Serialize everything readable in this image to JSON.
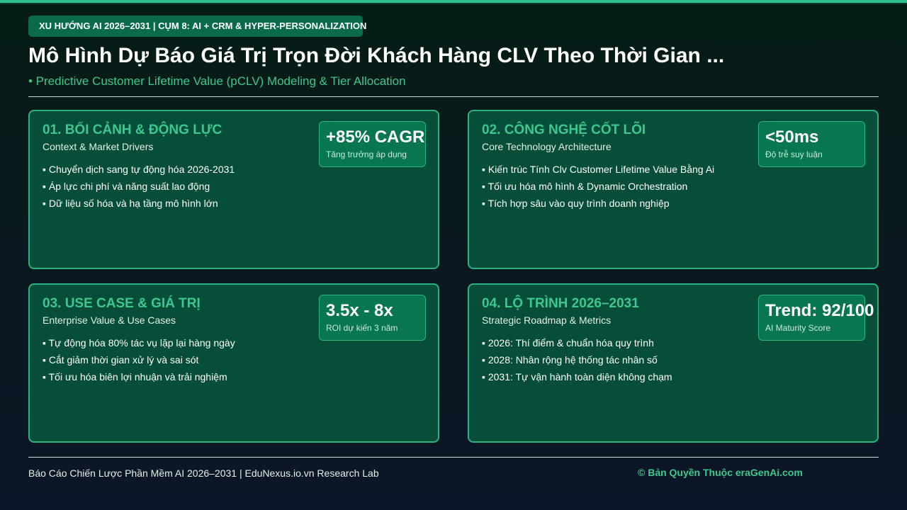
{
  "header": {
    "badge": "XU HƯỚNG AI 2026–2031 | CỤM 8: AI + CRM & HYPER-PERSONALIZATION",
    "title": "Mô Hình Dự Báo Giá Trị Trọn Đời Khách Hàng CLV Theo Thời Gian ...",
    "subtitle": "• Predictive Customer Lifetime Value (pCLV) Modeling & Tier Allocation"
  },
  "cards": [
    {
      "title": "01. BỐI CẢNH & ĐỘNG LỰC",
      "subtitle": "Context & Market Drivers",
      "metric": "+85% CAGR",
      "metric_label": "Tăng trưởng áp dụng",
      "bullets": [
        "▪ Chuyển dịch sang tự động hóa 2026-2031",
        "▪ Áp lực chi phí và năng suất lao động",
        "▪ Dữ liệu số hóa và hạ tầng mô hình lớn"
      ]
    },
    {
      "title": "02. CÔNG NGHỆ CỐT LÕI",
      "subtitle": "Core Technology Architecture",
      "metric": "<50ms",
      "metric_label": "Độ trễ suy luận",
      "bullets": [
        "▪ Kiến trúc Tính Clv Customer Lifetime Value Bằng Ai",
        "▪ Tối ưu hóa mô hình & Dynamic Orchestration",
        "▪ Tích hợp sâu vào quy trình doanh nghiệp"
      ]
    },
    {
      "title": "03. USE CASE & GIÁ TRỊ",
      "subtitle": "Enterprise Value & Use Cases",
      "metric": "3.5x - 8x",
      "metric_label": "ROI dự kiến 3 năm",
      "bullets": [
        "▪ Tự động hóa 80% tác vụ lặp lại hàng ngày",
        "▪ Cắt giảm thời gian xử lý và sai sót",
        "▪ Tối ưu hóa biên lợi nhuận và trải nghiệm"
      ]
    },
    {
      "title": "04. LỘ TRÌNH 2026–2031",
      "subtitle": "Strategic Roadmap & Metrics",
      "metric": "Trend: 92/100",
      "metric_label": "AI Maturity Score",
      "bullets": [
        "▪ 2026: Thí điểm & chuẩn hóa quy trình",
        "▪ 2028: Nhân rộng hệ thống tác nhân số",
        "▪ 2031: Tự vận hành toàn diện không chạm"
      ]
    }
  ],
  "footer": {
    "left": "Báo Cáo Chiến Lược Phần Mềm AI 2026–2031 | EduNexus.io.vn Research Lab",
    "right": "© Bản Quyền Thuộc eraGenAi.com"
  }
}
